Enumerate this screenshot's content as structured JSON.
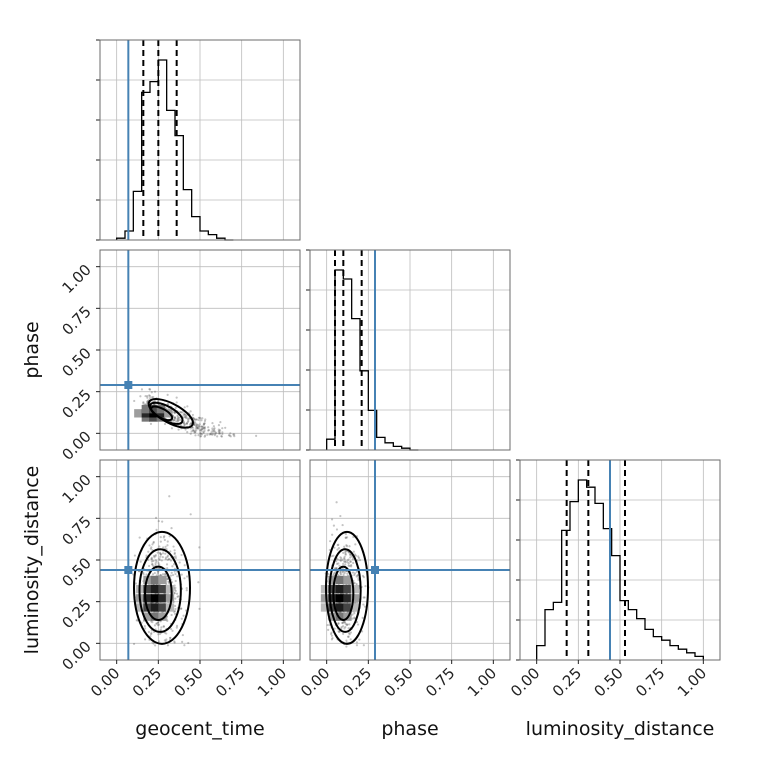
{
  "chart_data": {
    "type": "corner",
    "parameters": [
      "geocent_time",
      "phase",
      "luminosity_distance"
    ],
    "axis_range": [
      -0.1,
      1.1
    ],
    "ticks": [
      0.0,
      0.25,
      0.5,
      0.75,
      1.0
    ],
    "tick_labels": [
      "0.00",
      "0.25",
      "0.50",
      "0.75",
      "1.00"
    ],
    "grid": true,
    "colors": {
      "truth": "#4682b4",
      "hist": "#000000",
      "frame": "#6b6b6b"
    },
    "truths": {
      "geocent_time": 0.07,
      "phase": 0.29,
      "luminosity_distance": 0.44
    },
    "quantiles": {
      "geocent_time": [
        0.16,
        0.25,
        0.36
      ],
      "phase": [
        0.05,
        0.1,
        0.21
      ],
      "luminosity_distance": [
        0.18,
        0.31,
        0.53
      ]
    },
    "histograms": {
      "geocent_time": {
        "edges": [
          0,
          0.05,
          0.1,
          0.15,
          0.2,
          0.25,
          0.3,
          0.35,
          0.4,
          0.45,
          0.5,
          0.55,
          0.6,
          0.65,
          0.7
        ],
        "counts": [
          0.01,
          0.05,
          0.27,
          0.82,
          0.88,
          1.0,
          0.72,
          0.58,
          0.28,
          0.13,
          0.05,
          0.03,
          0.01,
          0.0
        ]
      },
      "phase": {
        "edges": [
          0,
          0.05,
          0.1,
          0.15,
          0.2,
          0.25,
          0.3,
          0.35,
          0.4,
          0.45,
          0.5,
          0.55
        ],
        "counts": [
          0.06,
          1.0,
          0.95,
          0.73,
          0.44,
          0.22,
          0.07,
          0.04,
          0.02,
          0.01,
          0.0
        ]
      },
      "luminosity_distance": {
        "edges": [
          0,
          0.05,
          0.1,
          0.15,
          0.2,
          0.25,
          0.3,
          0.35,
          0.4,
          0.45,
          0.5,
          0.55,
          0.6,
          0.65,
          0.7,
          0.75,
          0.8,
          0.85,
          0.9,
          0.95,
          1.0
        ],
        "counts": [
          0.08,
          0.28,
          0.32,
          0.72,
          0.88,
          1.0,
          0.96,
          0.87,
          0.73,
          0.58,
          0.33,
          0.28,
          0.23,
          0.17,
          0.13,
          0.11,
          0.08,
          0.06,
          0.04,
          0.02
        ]
      }
    },
    "joint_densities": [
      {
        "x": "geocent_time",
        "y": "phase",
        "peak": [
          0.22,
          0.12
        ],
        "spread": [
          0.07,
          0.05
        ]
      },
      {
        "x": "geocent_time",
        "y": "luminosity_distance",
        "peak": [
          0.23,
          0.27
        ],
        "spread": [
          0.08,
          0.16
        ]
      },
      {
        "x": "phase",
        "y": "luminosity_distance",
        "peak": [
          0.08,
          0.27
        ],
        "spread": [
          0.06,
          0.16
        ]
      }
    ]
  }
}
